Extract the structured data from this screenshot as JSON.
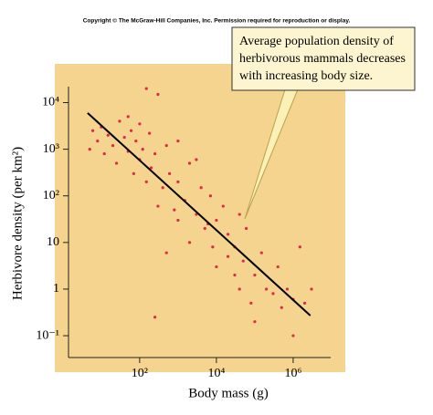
{
  "chart_data": {
    "type": "scatter",
    "copyright": "Copyright © The McGraw-Hill Companies, Inc. Permission required for reproduction or display.",
    "annotation": [
      "Average population density of",
      "herbivorous mammals decreases",
      "with increasing body size."
    ],
    "xlabel": "Body mass (g)",
    "ylabel": "Herbivore density (per km²)",
    "xscale": "log",
    "yscale": "log",
    "xlim": [
      1.4,
      9500000
    ],
    "ylim": [
      0.034,
      22000
    ],
    "xticks": [
      {
        "value": 100,
        "label": "10²"
      },
      {
        "value": 10000,
        "label": "10⁴"
      },
      {
        "value": 1000000,
        "label": "10⁶"
      }
    ],
    "yticks": [
      {
        "value": 0.1,
        "label": "10⁻¹"
      },
      1,
      10,
      {
        "value": 100,
        "label": "10²"
      },
      {
        "value": 1000,
        "label": "10³"
      },
      {
        "value": 10000,
        "label": "10⁴"
      }
    ],
    "color": "#e0284a",
    "x": [
      5,
      6,
      8,
      10,
      12,
      15,
      20,
      25,
      30,
      40,
      50,
      60,
      70,
      80,
      100,
      100,
      120,
      150,
      150,
      180,
      200,
      250,
      300,
      300,
      400,
      500,
      500,
      600,
      800,
      1000,
      1000,
      1500,
      2000,
      2000,
      3000,
      4000,
      5000,
      6000,
      8000,
      10000,
      10000,
      15000,
      20000,
      20000,
      30000,
      30000,
      40000,
      50000,
      60000,
      80000,
      100000,
      100000,
      150000,
      200000,
      300000,
      400000,
      500000,
      700000,
      1000000,
      1000000,
      1500000,
      2000000,
      3000000,
      250,
      40000,
      7000,
      3000,
      1000,
      50
    ],
    "values": [
      1000,
      2500,
      1500,
      3000,
      800,
      2000,
      1200,
      500,
      4000,
      1800,
      900,
      2500,
      300,
      1500,
      3500,
      600,
      1000,
      20000,
      200,
      2200,
      400,
      800,
      15000,
      60,
      150,
      6,
      1200,
      300,
      50,
      200,
      30,
      80,
      500,
      10,
      40,
      150,
      20,
      25,
      8,
      30,
      3,
      60,
      5,
      15,
      2,
      8,
      1,
      4,
      20,
      0.5,
      2,
      0.2,
      6,
      1,
      0.8,
      3,
      0.4,
      1,
      0.6,
      0.1,
      8,
      0.5,
      1,
      0.25,
      40,
      100,
      600,
      1500,
      5000
    ],
    "trend_line": {
      "x": [
        4.4,
        2800000
      ],
      "y": [
        6000,
        0.27
      ]
    }
  }
}
